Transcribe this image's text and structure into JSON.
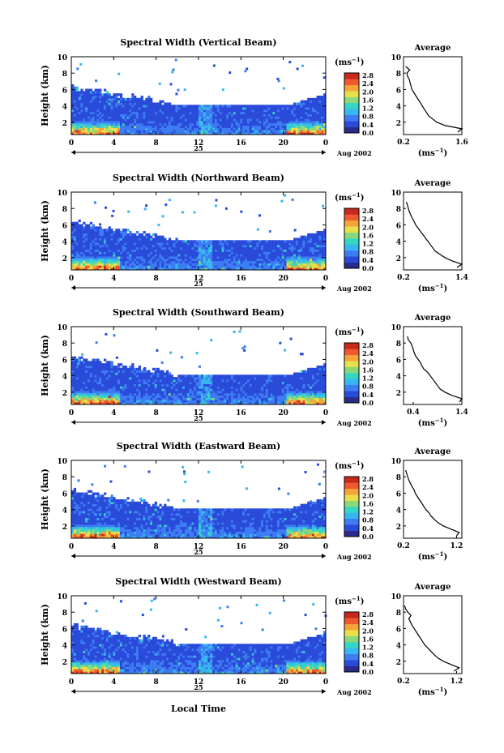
{
  "figure": {
    "shared_xlabel": "Local Time",
    "date_label": "Aug 2002",
    "day_label": "25",
    "colorbar_unit_base": "(ms",
    "colorbar_unit_exp": "−1",
    "colorbar_unit_close": ")",
    "colorbar_ticks": [
      "2.8",
      "2.4",
      "2.0",
      "1.6",
      "1.2",
      "0.8",
      "0.4",
      "0.0"
    ],
    "profile_title": "Average",
    "profile_xlabel_base": "(ms",
    "profile_xlabel_exp": "−1",
    "profile_xlabel_close": ")",
    "colors": {
      "colormap": [
        "#2a2a8a",
        "#2a4bd9",
        "#3d7cf2",
        "#38b6f0",
        "#36d6c4",
        "#8ad87a",
        "#e8e04a",
        "#f4a43a",
        "#ee5a2e",
        "#c8281e"
      ],
      "background": "#ffffff"
    }
  },
  "chart_data": [
    {
      "type": "heatmap",
      "title": "Spectral Width (Vertical Beam)",
      "ylabel": "Height (km)",
      "x_ticks": [
        "0",
        "4",
        "8",
        "12",
        "16",
        "20",
        "0"
      ],
      "y_ticks": [
        "2",
        "4",
        "6",
        "8",
        "10"
      ],
      "xlim": [
        0,
        24
      ],
      "ylim": [
        0.5,
        10
      ],
      "value_range": [
        0.0,
        2.8
      ],
      "profile": {
        "xlim": [
          0.2,
          1.6
        ],
        "x_ticks": [
          "0.2",
          "1.6"
        ],
        "heights": [
          0.8,
          1.2,
          1.6,
          2.0,
          2.4,
          2.8,
          3.2,
          3.6,
          4.0,
          4.4,
          4.8,
          5.2,
          5.6,
          6.0,
          6.4,
          6.8,
          7.2,
          7.6,
          8.0,
          8.4,
          8.8
        ],
        "values": [
          1.5,
          1.6,
          1.2,
          1.0,
          0.9,
          0.8,
          0.75,
          0.7,
          0.65,
          0.6,
          0.55,
          0.5,
          0.45,
          0.4,
          0.38,
          0.36,
          0.34,
          0.3,
          0.28,
          0.35,
          0.25
        ]
      }
    },
    {
      "type": "heatmap",
      "title": "Spectral Width (Northward Beam)",
      "ylabel": "Height (km)",
      "x_ticks": [
        "0",
        "4",
        "8",
        "12",
        "16",
        "20",
        "0"
      ],
      "y_ticks": [
        "2",
        "4",
        "6",
        "8",
        "10"
      ],
      "xlim": [
        0,
        24
      ],
      "ylim": [
        0.5,
        10
      ],
      "value_range": [
        0.0,
        2.8
      ],
      "profile": {
        "xlim": [
          0.2,
          1.4
        ],
        "x_ticks": [
          "0.2",
          "1.4"
        ],
        "heights": [
          0.8,
          1.2,
          1.6,
          2.0,
          2.4,
          2.8,
          3.2,
          3.6,
          4.0,
          4.4,
          4.8,
          5.2,
          5.6,
          6.0,
          6.4,
          6.8,
          7.2,
          7.6,
          8.0,
          8.4,
          8.8
        ],
        "values": [
          1.3,
          1.4,
          1.2,
          1.05,
          0.95,
          0.85,
          0.8,
          0.75,
          0.7,
          0.65,
          0.6,
          0.55,
          0.5,
          0.45,
          0.42,
          0.38,
          0.35,
          0.32,
          0.3,
          0.28,
          0.26
        ]
      }
    },
    {
      "type": "heatmap",
      "title": "Spectral Width (Southward Beam)",
      "ylabel": "Height (km)",
      "x_ticks": [
        "0",
        "4",
        "8",
        "12",
        "16",
        "20",
        "0"
      ],
      "y_ticks": [
        "2",
        "4",
        "6",
        "8",
        "10"
      ],
      "xlim": [
        0,
        24
      ],
      "ylim": [
        0.5,
        10
      ],
      "value_range": [
        0.0,
        2.8
      ],
      "profile": {
        "xlim": [
          0.2,
          1.4
        ],
        "x_ticks": [
          "0.4",
          "1.4"
        ],
        "heights": [
          0.8,
          1.2,
          1.6,
          2.0,
          2.4,
          2.8,
          3.2,
          3.6,
          4.0,
          4.4,
          4.8,
          5.2,
          5.6,
          6.0,
          6.4,
          6.8,
          7.2,
          7.6,
          8.0,
          8.4,
          8.8
        ],
        "values": [
          1.35,
          1.4,
          1.2,
          1.05,
          0.95,
          0.9,
          0.85,
          0.8,
          0.75,
          0.7,
          0.62,
          0.58,
          0.55,
          0.5,
          0.45,
          0.42,
          0.4,
          0.38,
          0.35,
          0.3,
          0.28
        ]
      }
    },
    {
      "type": "heatmap",
      "title": "Spectral Width (Eastward Beam)",
      "ylabel": "Height (km)",
      "x_ticks": [
        "0",
        "4",
        "8",
        "12",
        "16",
        "20",
        "0"
      ],
      "y_ticks": [
        "2",
        "4",
        "6",
        "8",
        "10"
      ],
      "xlim": [
        0,
        24
      ],
      "ylim": [
        0.5,
        10
      ],
      "value_range": [
        0.0,
        2.8
      ],
      "profile": {
        "xlim": [
          0.2,
          1.3
        ],
        "x_ticks": [
          "0.2",
          "1.2"
        ],
        "heights": [
          0.8,
          1.2,
          1.6,
          2.0,
          2.4,
          2.8,
          3.2,
          3.6,
          4.0,
          4.4,
          4.8,
          5.2,
          5.6,
          6.0,
          6.4,
          6.8,
          7.2,
          7.6,
          8.0,
          8.4,
          8.8
        ],
        "values": [
          1.2,
          1.25,
          1.1,
          0.95,
          0.85,
          0.78,
          0.72,
          0.68,
          0.62,
          0.58,
          0.54,
          0.5,
          0.46,
          0.42,
          0.4,
          0.36,
          0.33,
          0.3,
          0.28,
          0.26,
          0.24
        ]
      }
    },
    {
      "type": "heatmap",
      "title": "Spectral Width (Westward Beam)",
      "ylabel": "Height (km)",
      "x_ticks": [
        "0",
        "4",
        "8",
        "12",
        "16",
        "20",
        "0"
      ],
      "y_ticks": [
        "2",
        "4",
        "6",
        "8",
        "10"
      ],
      "xlim": [
        0,
        24
      ],
      "ylim": [
        0.5,
        10
      ],
      "value_range": [
        0.0,
        2.8
      ],
      "profile": {
        "xlim": [
          0.2,
          1.3
        ],
        "x_ticks": [
          "0.2",
          "1.2"
        ],
        "heights": [
          0.8,
          1.2,
          1.6,
          2.0,
          2.4,
          2.8,
          3.2,
          3.6,
          4.0,
          4.4,
          4.8,
          5.2,
          5.6,
          6.0,
          6.4,
          6.8,
          7.2,
          7.6,
          8.0,
          8.4,
          8.8
        ],
        "values": [
          1.15,
          1.25,
          1.1,
          0.95,
          0.85,
          0.78,
          0.72,
          0.66,
          0.6,
          0.56,
          0.52,
          0.48,
          0.44,
          0.4,
          0.36,
          0.33,
          0.3,
          0.34,
          0.28,
          0.24,
          0.22
        ]
      }
    }
  ]
}
